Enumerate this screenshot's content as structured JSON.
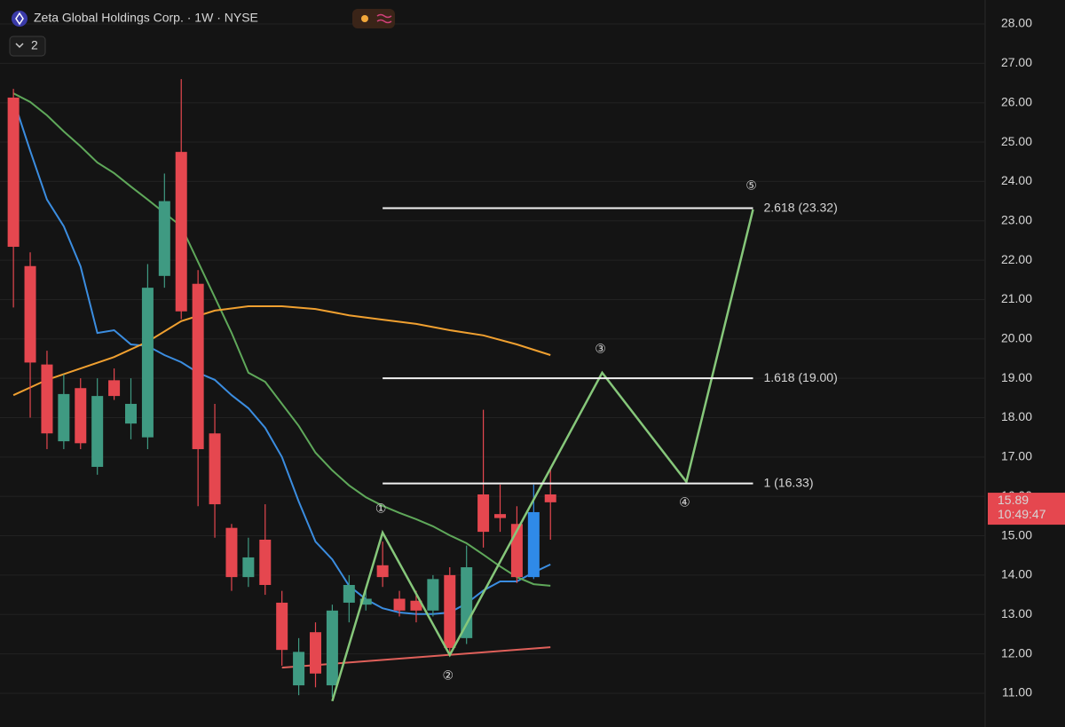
{
  "chart_data": {
    "type": "candlestick",
    "title": "Zeta Global Holdings Corp. · 1W · NYSE",
    "indicator_count": "2",
    "ylim": [
      10.37,
      28.0
    ],
    "xlim": [
      -0.8,
      57.9
    ],
    "yticks": [
      {
        "value": 11,
        "label": "11.00"
      },
      {
        "value": 12,
        "label": "12.00"
      },
      {
        "value": 13,
        "label": "13.00"
      },
      {
        "value": 14,
        "label": "14.00"
      },
      {
        "value": 15,
        "label": "15.00"
      },
      {
        "value": 16,
        "label": "16.00"
      },
      {
        "value": 17,
        "label": "17.00"
      },
      {
        "value": 18,
        "label": "18.00"
      },
      {
        "value": 19,
        "label": "19.00"
      },
      {
        "value": 20,
        "label": "20.00"
      },
      {
        "value": 21,
        "label": "21.00"
      },
      {
        "value": 22,
        "label": "22.00"
      },
      {
        "value": 23,
        "label": "23.00"
      },
      {
        "value": 24,
        "label": "24.00"
      },
      {
        "value": 25,
        "label": "25.00"
      },
      {
        "value": 26,
        "label": "26.00"
      },
      {
        "value": 27,
        "label": "27.00"
      },
      {
        "value": 28,
        "label": "28.00"
      }
    ],
    "grid": true,
    "candles": [
      {
        "open": 26.13,
        "high": 26.35,
        "low": 20.8,
        "close": 22.34,
        "color": "#e5474f"
      },
      {
        "open": 21.85,
        "high": 22.2,
        "low": 18.0,
        "close": 19.4,
        "color": "#e5474f"
      },
      {
        "open": 19.35,
        "high": 19.7,
        "low": 17.2,
        "close": 17.6,
        "color": "#e5474f"
      },
      {
        "open": 17.4,
        "high": 19.1,
        "low": 17.2,
        "close": 18.6,
        "color": "#3f9a82"
      },
      {
        "open": 18.75,
        "high": 19.0,
        "low": 17.2,
        "close": 17.35,
        "color": "#e5474f"
      },
      {
        "open": 16.75,
        "high": 19.0,
        "low": 16.55,
        "close": 18.55,
        "color": "#3f9a82"
      },
      {
        "open": 18.95,
        "high": 19.25,
        "low": 18.45,
        "close": 18.55,
        "color": "#e5474f"
      },
      {
        "open": 17.85,
        "high": 19.0,
        "low": 17.45,
        "close": 18.35,
        "color": "#3f9a82"
      },
      {
        "open": 17.5,
        "high": 21.9,
        "low": 17.2,
        "close": 21.3,
        "color": "#3f9a82"
      },
      {
        "open": 21.6,
        "high": 24.2,
        "low": 21.3,
        "close": 23.5,
        "color": "#3f9a82"
      },
      {
        "open": 24.75,
        "high": 26.6,
        "low": 20.5,
        "close": 20.7,
        "color": "#e5474f"
      },
      {
        "open": 21.4,
        "high": 21.75,
        "low": 15.75,
        "close": 17.2,
        "color": "#e5474f"
      },
      {
        "open": 17.6,
        "high": 18.35,
        "low": 14.95,
        "close": 15.8,
        "color": "#e5474f"
      },
      {
        "open": 15.2,
        "high": 15.3,
        "low": 13.6,
        "close": 13.95,
        "color": "#e5474f"
      },
      {
        "open": 13.95,
        "high": 14.95,
        "low": 13.7,
        "close": 14.45,
        "color": "#3f9a82"
      },
      {
        "open": 14.9,
        "high": 15.8,
        "low": 13.5,
        "close": 13.75,
        "color": "#e5474f"
      },
      {
        "open": 13.3,
        "high": 13.6,
        "low": 11.7,
        "close": 12.1,
        "color": "#e5474f"
      },
      {
        "open": 11.2,
        "high": 12.4,
        "low": 10.95,
        "close": 12.05,
        "color": "#3f9a82"
      },
      {
        "open": 12.55,
        "high": 12.8,
        "low": 11.15,
        "close": 11.5,
        "color": "#e5474f"
      },
      {
        "open": 11.2,
        "high": 13.25,
        "low": 10.9,
        "close": 13.1,
        "color": "#3f9a82"
      },
      {
        "open": 13.3,
        "high": 14.0,
        "low": 12.8,
        "close": 13.75,
        "color": "#3f9a82"
      },
      {
        "open": 13.25,
        "high": 13.6,
        "low": 13.1,
        "close": 13.4,
        "color": "#3f9a82"
      },
      {
        "open": 14.25,
        "high": 14.85,
        "low": 13.7,
        "close": 13.95,
        "color": "#e5474f"
      },
      {
        "open": 13.4,
        "high": 13.6,
        "low": 12.95,
        "close": 13.1,
        "color": "#e5474f"
      },
      {
        "open": 13.35,
        "high": 13.6,
        "low": 12.8,
        "close": 13.1,
        "color": "#e5474f"
      },
      {
        "open": 13.1,
        "high": 14.0,
        "low": 12.95,
        "close": 13.9,
        "color": "#3f9a82"
      },
      {
        "open": 14.0,
        "high": 14.2,
        "low": 11.95,
        "close": 12.15,
        "color": "#e5474f"
      },
      {
        "open": 12.4,
        "high": 14.75,
        "low": 12.25,
        "close": 14.2,
        "color": "#3f9a82"
      },
      {
        "open": 16.05,
        "high": 18.2,
        "low": 14.7,
        "close": 15.1,
        "color": "#e5474f"
      },
      {
        "open": 15.55,
        "high": 16.3,
        "low": 15.1,
        "close": 15.45,
        "color": "#e5474f"
      },
      {
        "open": 15.3,
        "high": 15.75,
        "low": 13.8,
        "close": 13.95,
        "color": "#e5474f"
      },
      {
        "open": 13.95,
        "high": 16.3,
        "low": 13.9,
        "close": 15.6,
        "color": "#2f8ae8"
      },
      {
        "open": 16.05,
        "high": 16.75,
        "low": 14.9,
        "close": 15.85,
        "color": "#e5474f"
      }
    ],
    "lines": [
      {
        "color": "#3b8de0",
        "x": [
          0,
          1,
          2,
          3,
          4,
          5,
          6,
          7,
          8,
          9,
          10,
          11,
          12,
          13,
          14,
          15,
          16,
          17,
          18,
          19,
          20,
          21,
          22,
          23,
          24,
          25,
          26,
          27,
          28,
          29,
          30,
          31,
          32
        ],
        "values": [
          26.08,
          24.78,
          23.54,
          22.86,
          21.84,
          20.15,
          20.22,
          19.86,
          19.82,
          19.59,
          19.41,
          19.14,
          18.96,
          18.57,
          18.24,
          17.74,
          17.0,
          15.87,
          14.85,
          14.4,
          13.73,
          13.39,
          13.16,
          13.05,
          13.01,
          13.01,
          13.05,
          13.28,
          13.61,
          13.84,
          13.84,
          14.07,
          14.27
        ]
      },
      {
        "color": "#5fa85a",
        "x": [
          0,
          1,
          2,
          3,
          4,
          5,
          6,
          7,
          8,
          9,
          10,
          11,
          12,
          13,
          14,
          15,
          16,
          17,
          18,
          19,
          20,
          21,
          22,
          23,
          24,
          25,
          26,
          27,
          28,
          29,
          30,
          31,
          32
        ],
        "values": [
          26.24,
          26.02,
          25.68,
          25.27,
          24.89,
          24.48,
          24.21,
          23.87,
          23.54,
          23.2,
          22.86,
          21.96,
          21.06,
          20.15,
          19.14,
          18.91,
          18.35,
          17.79,
          17.11,
          16.66,
          16.28,
          15.98,
          15.76,
          15.58,
          15.42,
          15.24,
          15.01,
          14.81,
          14.52,
          14.22,
          13.95,
          13.77,
          13.73
        ]
      },
      {
        "color": "#f0a030",
        "x": [
          0,
          2,
          4,
          6,
          8,
          10,
          12,
          14,
          16,
          18,
          20,
          22,
          24,
          26,
          28,
          30,
          32
        ],
        "values": [
          18.57,
          18.96,
          19.25,
          19.54,
          19.93,
          20.45,
          20.72,
          20.83,
          20.83,
          20.76,
          20.6,
          20.49,
          20.38,
          20.22,
          20.09,
          19.86,
          19.59
        ]
      },
      {
        "color": "#e0605a",
        "x": [
          16,
          32
        ],
        "values": [
          11.65,
          12.17
        ]
      }
    ],
    "wave": {
      "color": "#86c77a",
      "x": [
        19,
        22,
        26,
        35.08,
        40.1,
        44.07
      ],
      "values": [
        10.8,
        15.08,
        11.97,
        19.14,
        16.37,
        23.29
      ],
      "labels": [
        null,
        "①",
        "②",
        "③",
        "④",
        "⑤"
      ]
    },
    "levels": [
      {
        "value": 23.32,
        "label": "2.618 (23.32)"
      },
      {
        "value": 19.0,
        "label": "1.618 (19.00)"
      },
      {
        "value": 16.33,
        "label": "1 (16.33)"
      }
    ],
    "last_price": {
      "value": 15.89,
      "label": "15.89"
    },
    "countdown": "10:49:47"
  }
}
